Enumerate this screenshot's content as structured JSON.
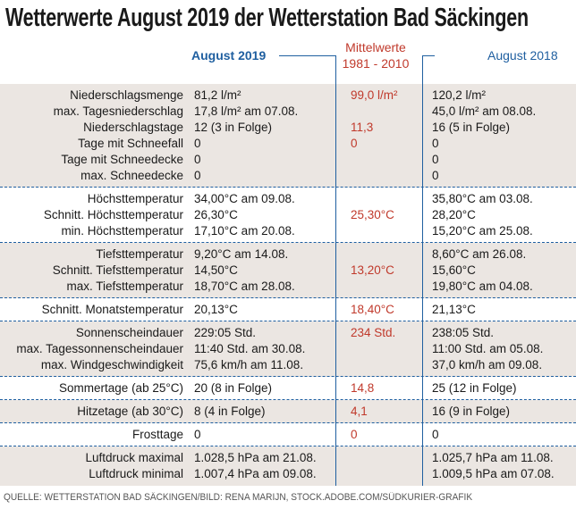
{
  "title": "Wetterwerte August 2019 der Wetterstation Bad Säckingen",
  "columns": {
    "current": "August 2019",
    "mean": [
      "Mittelwerte",
      "1981 - 2010"
    ],
    "previous": "August 2018"
  },
  "groups": [
    {
      "rows": [
        {
          "label": "Niederschlagsmenge",
          "current": "81,2 l/m²",
          "mean": "99,0 l/m²",
          "previous": "120,2 l/m²"
        },
        {
          "label": "max. Tagesniederschlag",
          "current": "17,8 l/m² am 07.08.",
          "previous": "45,0 l/m²  am 08.08."
        },
        {
          "label": "Niederschlagstage",
          "current": "12 (3 in Folge)",
          "mean": "11,3",
          "previous": "16 (5 in Folge)"
        },
        {
          "label": "Tage mit Schneefall",
          "current": "0",
          "mean": "0",
          "previous": "0"
        },
        {
          "label": "Tage mit Schneedecke",
          "current": "0",
          "previous": "0"
        },
        {
          "label": "max. Schneedecke",
          "current": "0",
          "previous": "0"
        }
      ]
    },
    {
      "rows": [
        {
          "label": "Höchsttemperatur",
          "current": "34,00°C am 09.08.",
          "previous": "35,80°C am 03.08."
        },
        {
          "label": "Schnitt. Höchsttemperatur",
          "current": "26,30°C",
          "mean": "25,30°C",
          "previous": "28,20°C"
        },
        {
          "label": "min. Höchsttemperatur",
          "current": "17,10°C am 20.08.",
          "previous": "15,20°C am 25.08."
        }
      ]
    },
    {
      "rows": [
        {
          "label": "Tiefsttemperatur",
          "current": "9,20°C      am 14.08.",
          "previous": "8,60°C am 26.08."
        },
        {
          "label": "Schnitt. Tiefsttemperatur",
          "current": "14,50°C",
          "mean": "13,20°C",
          "previous": "15,60°C"
        },
        {
          "label": "max. Tiefsttemperatur",
          "current": "18,70°C     am 28.08.",
          "previous": "19,80°C am 04.08."
        }
      ]
    },
    {
      "rows": [
        {
          "label": "Schnitt. Monatstemperatur",
          "current": "20,13°C",
          "mean": "18,40°C",
          "previous": "21,13°C"
        }
      ]
    },
    {
      "rows": [
        {
          "label": "Sonnenscheindauer",
          "current": "229:05 Std.",
          "mean": "234 Std.",
          "previous": "238:05 Std."
        },
        {
          "label": "max. Tagessonnenscheindauer",
          "current": "11:40 Std. am 30.08.",
          "previous": "11:00 Std. am 05.08."
        },
        {
          "label": "max. Windgeschwindigkeit",
          "current": "75,6 km/h am 11.08.",
          "previous": "37,0 km/h am 09.08."
        }
      ]
    },
    {
      "rows": [
        {
          "label": "Sommertage (ab 25°C)",
          "current": "20 (8 in Folge)",
          "mean": "14,8",
          "previous": "25 (12 in Folge)"
        }
      ]
    },
    {
      "rows": [
        {
          "label": "Hitzetage (ab 30°C)",
          "current": "8    (4 in Folge)",
          "mean": "4,1",
          "previous": "16  (9 in Folge)"
        }
      ]
    },
    {
      "rows": [
        {
          "label": "Frosttage",
          "current": "0",
          "mean": "0",
          "previous": "0"
        }
      ]
    },
    {
      "rows": [
        {
          "label": "Luftdruck maximal",
          "current": "1.028,5 hPa am 21.08.",
          "previous": "1.025,7 hPa am 11.08."
        },
        {
          "label": "Luftdruck minimal",
          "current": "1.007,4 hPa am 09.08.",
          "previous": "1.009,5 hPa am 07.08."
        }
      ]
    }
  ],
  "footer": "QUELLE: WETTERSTATION BAD SÄCKINGEN/BILD: RENA MARIJN, STOCK.ADOBE.COM/SÜDKURIER-GRAFIK"
}
